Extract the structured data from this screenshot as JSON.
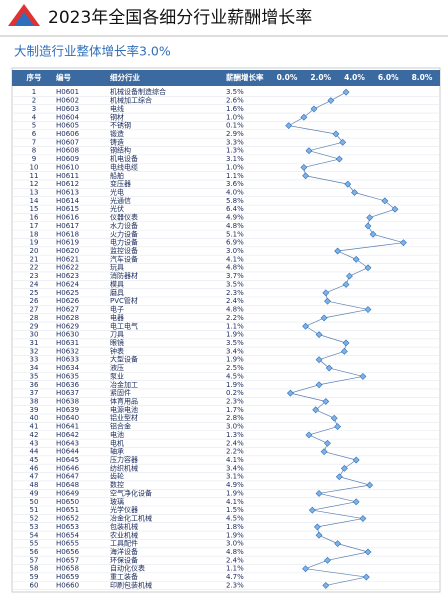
{
  "header": {
    "title": "2023年全国各细分行业薪酬增长率",
    "subtitle": "大制造行业整体增长率3.0%"
  },
  "table": {
    "columns": [
      "序号",
      "编号",
      "细分行业",
      "薪酬增长率"
    ],
    "axis_ticks": [
      {
        "value": 0,
        "label": "0.0%"
      },
      {
        "value": 2,
        "label": "2.0%"
      },
      {
        "value": 4,
        "label": "4.0%"
      },
      {
        "value": 6,
        "label": "6.0%"
      },
      {
        "value": 8,
        "label": "8.0%"
      }
    ],
    "rows": [
      {
        "no": 1,
        "code": "H0601",
        "name": "机械设备制造综合",
        "rate": 3.5,
        "rate_label": "3.5%"
      },
      {
        "no": 2,
        "code": "H0602",
        "name": "机械加工综合",
        "rate": 2.6,
        "rate_label": "2.6%"
      },
      {
        "no": 3,
        "code": "H0603",
        "name": "电线",
        "rate": 1.6,
        "rate_label": "1.6%"
      },
      {
        "no": 4,
        "code": "H0604",
        "name": "钢材",
        "rate": 1.0,
        "rate_label": "1.0%"
      },
      {
        "no": 5,
        "code": "H0605",
        "name": "不锈钢",
        "rate": 0.1,
        "rate_label": "0.1%"
      },
      {
        "no": 6,
        "code": "H0606",
        "name": "锻造",
        "rate": 2.9,
        "rate_label": "2.9%"
      },
      {
        "no": 7,
        "code": "H0607",
        "name": "铸造",
        "rate": 3.3,
        "rate_label": "3.3%"
      },
      {
        "no": 8,
        "code": "H0608",
        "name": "钢结构",
        "rate": 1.3,
        "rate_label": "1.3%"
      },
      {
        "no": 9,
        "code": "H0609",
        "name": "机电设备",
        "rate": 3.1,
        "rate_label": "3.1%"
      },
      {
        "no": 10,
        "code": "H0610",
        "name": "电线电缆",
        "rate": 1.0,
        "rate_label": "1.0%"
      },
      {
        "no": 11,
        "code": "H0611",
        "name": "船舶",
        "rate": 1.1,
        "rate_label": "1.1%"
      },
      {
        "no": 12,
        "code": "H0612",
        "name": "变压器",
        "rate": 3.6,
        "rate_label": "3.6%"
      },
      {
        "no": 13,
        "code": "H0613",
        "name": "光电",
        "rate": 4.0,
        "rate_label": "4.0%"
      },
      {
        "no": 14,
        "code": "H0614",
        "name": "光通信",
        "rate": 5.8,
        "rate_label": "5.8%"
      },
      {
        "no": 15,
        "code": "H0615",
        "name": "光伏",
        "rate": 6.4,
        "rate_label": "6.4%"
      },
      {
        "no": 16,
        "code": "H0616",
        "name": "仪器仪表",
        "rate": 4.9,
        "rate_label": "4.9%"
      },
      {
        "no": 17,
        "code": "H0617",
        "name": "水力设备",
        "rate": 4.8,
        "rate_label": "4.8%"
      },
      {
        "no": 18,
        "code": "H0618",
        "name": "火力设备",
        "rate": 5.1,
        "rate_label": "5.1%"
      },
      {
        "no": 19,
        "code": "H0619",
        "name": "电力设备",
        "rate": 6.9,
        "rate_label": "6.9%"
      },
      {
        "no": 20,
        "code": "H0620",
        "name": "监控设备",
        "rate": 3.0,
        "rate_label": "3.0%"
      },
      {
        "no": 21,
        "code": "H0621",
        "name": "汽车设备",
        "rate": 4.1,
        "rate_label": "4.1%"
      },
      {
        "no": 22,
        "code": "H0622",
        "name": "玩具",
        "rate": 4.8,
        "rate_label": "4.8%"
      },
      {
        "no": 23,
        "code": "H0623",
        "name": "消防器材",
        "rate": 3.7,
        "rate_label": "3.7%"
      },
      {
        "no": 24,
        "code": "H0624",
        "name": "模具",
        "rate": 3.5,
        "rate_label": "3.5%"
      },
      {
        "no": 25,
        "code": "H0625",
        "name": "磨具",
        "rate": 2.3,
        "rate_label": "2.3%"
      },
      {
        "no": 26,
        "code": "H0626",
        "name": "PVC管材",
        "rate": 2.4,
        "rate_label": "2.4%"
      },
      {
        "no": 27,
        "code": "H0627",
        "name": "电子",
        "rate": 4.8,
        "rate_label": "4.8%"
      },
      {
        "no": 28,
        "code": "H0628",
        "name": "电器",
        "rate": 2.2,
        "rate_label": "2.2%"
      },
      {
        "no": 29,
        "code": "H0629",
        "name": "电工电气",
        "rate": 1.1,
        "rate_label": "1.1%"
      },
      {
        "no": 30,
        "code": "H0630",
        "name": "刀具",
        "rate": 1.9,
        "rate_label": "1.9%"
      },
      {
        "no": 31,
        "code": "H0631",
        "name": "眼镜",
        "rate": 3.5,
        "rate_label": "3.5%"
      },
      {
        "no": 32,
        "code": "H0632",
        "name": "钟表",
        "rate": 3.4,
        "rate_label": "3.4%"
      },
      {
        "no": 33,
        "code": "H0633",
        "name": "大型设备",
        "rate": 1.9,
        "rate_label": "1.9%"
      },
      {
        "no": 34,
        "code": "H0634",
        "name": "液压",
        "rate": 2.5,
        "rate_label": "2.5%"
      },
      {
        "no": 35,
        "code": "H0635",
        "name": "泵业",
        "rate": 4.5,
        "rate_label": "4.5%"
      },
      {
        "no": 36,
        "code": "H0636",
        "name": "冶金加工",
        "rate": 1.9,
        "rate_label": "1.9%"
      },
      {
        "no": 37,
        "code": "H0637",
        "name": "紧固件",
        "rate": 0.2,
        "rate_label": "0.2%"
      },
      {
        "no": 38,
        "code": "H0638",
        "name": "体育用品",
        "rate": 2.3,
        "rate_label": "2.3%"
      },
      {
        "no": 39,
        "code": "H0639",
        "name": "电源电池",
        "rate": 1.7,
        "rate_label": "1.7%"
      },
      {
        "no": 40,
        "code": "H0640",
        "name": "铝业型材",
        "rate": 2.8,
        "rate_label": "2.8%"
      },
      {
        "no": 41,
        "code": "H0641",
        "name": "铝合金",
        "rate": 3.0,
        "rate_label": "3.0%"
      },
      {
        "no": 42,
        "code": "H0642",
        "name": "电池",
        "rate": 1.3,
        "rate_label": "1.3%"
      },
      {
        "no": 43,
        "code": "H0643",
        "name": "电机",
        "rate": 2.4,
        "rate_label": "2.4%"
      },
      {
        "no": 44,
        "code": "H0644",
        "name": "轴承",
        "rate": 2.2,
        "rate_label": "2.2%"
      },
      {
        "no": 45,
        "code": "H0645",
        "name": "压力容器",
        "rate": 4.1,
        "rate_label": "4.1%"
      },
      {
        "no": 46,
        "code": "H0646",
        "name": "纺织机械",
        "rate": 3.4,
        "rate_label": "3.4%"
      },
      {
        "no": 47,
        "code": "H0647",
        "name": "齿轮",
        "rate": 3.1,
        "rate_label": "3.1%"
      },
      {
        "no": 48,
        "code": "H0648",
        "name": "数控",
        "rate": 4.9,
        "rate_label": "4.9%"
      },
      {
        "no": 49,
        "code": "H0649",
        "name": "空气净化设备",
        "rate": 1.9,
        "rate_label": "1.9%"
      },
      {
        "no": 50,
        "code": "H0650",
        "name": "玻璃",
        "rate": 4.1,
        "rate_label": "4.1%"
      },
      {
        "no": 51,
        "code": "H0651",
        "name": "光学仪器",
        "rate": 1.5,
        "rate_label": "1.5%"
      },
      {
        "no": 52,
        "code": "H0652",
        "name": "冶金化工机械",
        "rate": 4.5,
        "rate_label": "4.5%"
      },
      {
        "no": 53,
        "code": "H0653",
        "name": "包装机械",
        "rate": 1.8,
        "rate_label": "1.8%"
      },
      {
        "no": 54,
        "code": "H0654",
        "name": "农业机械",
        "rate": 1.9,
        "rate_label": "1.9%"
      },
      {
        "no": 55,
        "code": "H0655",
        "name": "工具配件",
        "rate": 3.0,
        "rate_label": "3.0%"
      },
      {
        "no": 56,
        "code": "H0656",
        "name": "海洋设备",
        "rate": 4.8,
        "rate_label": "4.8%"
      },
      {
        "no": 57,
        "code": "H0657",
        "name": "环保设备",
        "rate": 2.4,
        "rate_label": "2.4%"
      },
      {
        "no": 58,
        "code": "H0658",
        "name": "自动化仪表",
        "rate": 1.1,
        "rate_label": "1.1%"
      },
      {
        "no": 59,
        "code": "H0659",
        "name": "重工装备",
        "rate": 4.7,
        "rate_label": "4.7%"
      },
      {
        "no": 60,
        "code": "H0660",
        "name": "印刷包装机械",
        "rate": 2.3,
        "rate_label": "2.3%"
      }
    ]
  }
}
